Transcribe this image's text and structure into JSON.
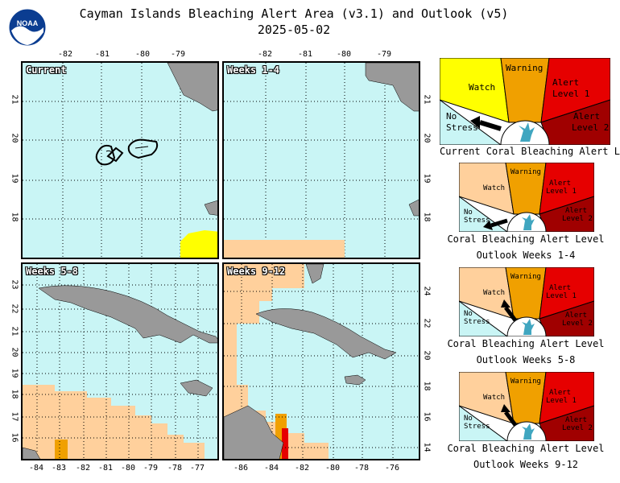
{
  "title": {
    "line1": "Cayman Islands Bleaching Alert Area (v3.1) and Outlook (v5)",
    "line2": "2025-05-02"
  },
  "logo_text": "NOAA",
  "top_lon_ticks": [
    "-82",
    "-81",
    "-80",
    "-79"
  ],
  "panels": [
    {
      "label": "Current",
      "lat_ticks": [
        "21",
        "20",
        "19",
        "18"
      ]
    },
    {
      "label": "Weeks 1-4",
      "lat_ticks": [
        "21",
        "20",
        "19",
        "18"
      ]
    },
    {
      "label": "Weeks 5-8",
      "lat_ticks": [
        "23",
        "22",
        "21",
        "20",
        "19",
        "18",
        "17",
        "16"
      ]
    },
    {
      "label": "Weeks 9-12",
      "lat_ticks": [
        "24",
        "22",
        "20",
        "18",
        "16",
        "14"
      ]
    }
  ],
  "bottom_left_lon_ticks": [
    "-84",
    "-83",
    "-82",
    "-81",
    "-80",
    "-79",
    "-78",
    "-77"
  ],
  "bottom_right_lon_ticks": [
    "-86",
    "-84",
    "-82",
    "-80",
    "-78",
    "-76"
  ],
  "gauges": [
    {
      "caption1": "Current Coral Bleaching Alert Level",
      "caption2": "",
      "level": "No Stress"
    },
    {
      "caption1": "Coral Bleaching Alert Level",
      "caption2": "Outlook Weeks 1-4",
      "level": "No Stress"
    },
    {
      "caption1": "Coral Bleaching Alert Level",
      "caption2": "Outlook Weeks 5-8",
      "level": "Watch"
    },
    {
      "caption1": "Coral Bleaching Alert Level",
      "caption2": "Outlook Weeks 9-12",
      "level": "Watch"
    }
  ],
  "gauge_labels": {
    "no_stress_1": "No",
    "no_stress_2": "Stress",
    "watch": "Watch",
    "warning": "Warning",
    "alert1_1": "Alert",
    "alert1_2": "Level 1",
    "alert2_1": "Alert",
    "alert2_2": "Level 2"
  },
  "colors": {
    "ocean": "#c9f5f5",
    "land": "#999999",
    "watch_zone": "#ffd09c",
    "warning_zone": "#f0a000",
    "alert1_zone": "#e60000",
    "alert2_zone": "#a00000",
    "yellow_watch": "#ffff00"
  }
}
